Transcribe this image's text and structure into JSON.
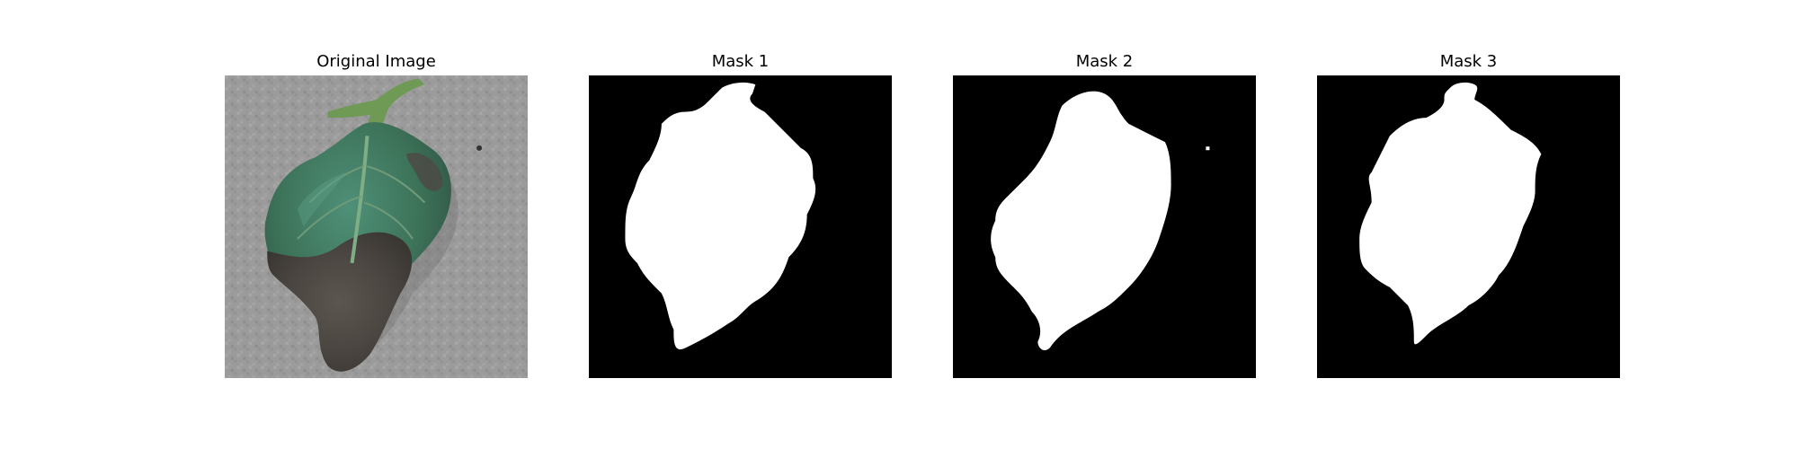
{
  "panels": [
    {
      "title": "Original Image",
      "content": "leaf-photo"
    },
    {
      "title": "Mask 1",
      "content": "binary-mask"
    },
    {
      "title": "Mask 2",
      "content": "binary-mask"
    },
    {
      "title": "Mask 3",
      "content": "binary-mask"
    }
  ],
  "colors": {
    "background": "#ffffff",
    "mask_background": "#000000",
    "mask_foreground": "#ffffff",
    "surface_gray": "#9a9a9a",
    "leaf_green": "#3f7a60",
    "leaf_dark": "#4f4a44",
    "stem_green": "#6f9a55"
  }
}
